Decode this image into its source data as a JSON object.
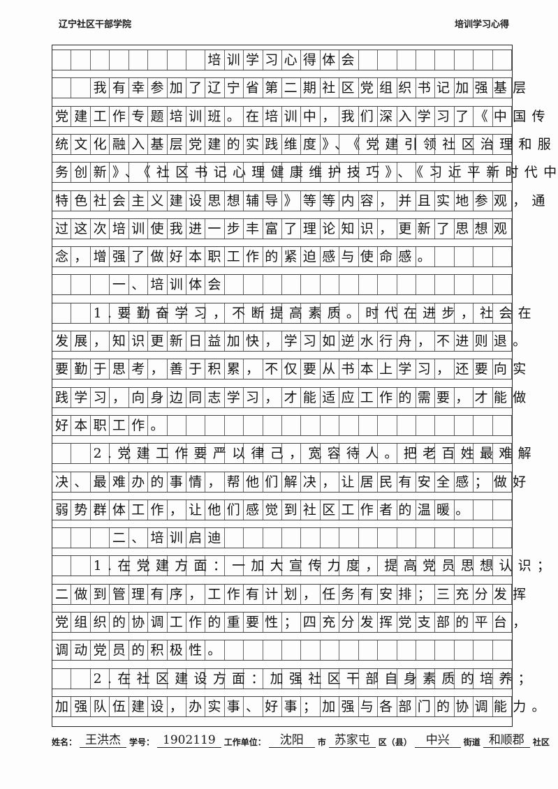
{
  "header": {
    "left": "辽宁社区干部学院",
    "right": "培训学习心得"
  },
  "lines": [
    "　　　　　　　　培训学习心得体会",
    "　　我有幸参加了辽宁省第二期社区党组织书记加强基层",
    "党建工作专题培训班。在培训中，我们深入学习了《中国传",
    "统文化融入基层党建的实践维度》、《党建引领社区治理和服",
    "务创新》、《社区书记心理健康维护技巧》、《习近平新时代中国",
    "特色社会主义建设思想辅导》等等内容，并且实地参观，通",
    "过这次培训使我进一步丰富了理论知识，更新了思想观",
    "念，增强了做好本职工作的紧迫感与使命感。",
    "　　　一、培训体会",
    "　　1.要勤奋学习，不断提高素质。时代在进步，社会在",
    "发展，知识更新日益加快，学习如逆水行舟，不进则退。",
    "要勤于思考，善于积累，不仅要从书本上学习，还要向实",
    "践学习，向身边同志学习，才能适应工作的需要，才能做",
    "好本职工作。",
    "　　2.党建工作要严以律己，宽容待人。把老百姓最难解",
    "决、最难办的事情，帮他们解决，让居民有安全感；做好",
    "弱势群体工作，让他们感觉到社区工作者的温暖。",
    "　　　二、培训启迪",
    "　　1.在党建方面：一加大宣传力度，提高党员思想认识；",
    "二做到管理有序，工作有计划，任务有安排；三充分发挥",
    "党组织的协调工作的重要性；四充分发挥党支部的平台，",
    "调动党员的积极性。",
    "　　2.在社区建设方面：加强社区干部自身素质的培养；",
    "加强队伍建设，办实事、好事；加强与各部门的协调能力。"
  ],
  "footer": {
    "name_label": "姓名：",
    "name": "王洪杰",
    "id_label": "学号：",
    "id": "1902119",
    "unit_label": "工作单位：",
    "city": "沈阳",
    "city_suffix": "市",
    "district": "苏家屯",
    "district_suffix": "区（县）",
    "street": "中兴",
    "street_suffix": "街道",
    "community": "和顺郡",
    "community_suffix": "社区"
  }
}
